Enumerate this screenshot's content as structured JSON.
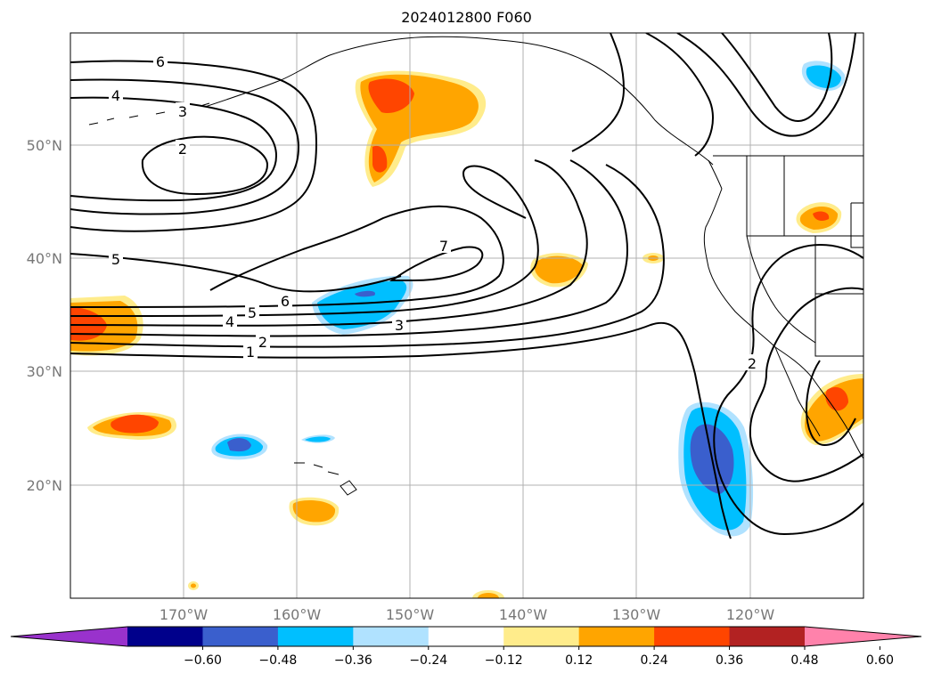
{
  "title": "2024012800 F060",
  "map": {
    "lat_ticks": [
      "50°N",
      "40°N",
      "30°N",
      "20°N"
    ],
    "lon_ticks": [
      "170°W",
      "160°W",
      "150°W",
      "140°W",
      "130°W",
      "120°W"
    ],
    "contour_labels": [
      "6",
      "4",
      "3",
      "2",
      "5",
      "7",
      "6",
      "5",
      "4",
      "2",
      "1",
      "3",
      "2"
    ],
    "grid": true
  },
  "colorbar": {
    "colors": [
      "#9932cc",
      "#00008b",
      "#3a5fcd",
      "#00bfff",
      "#b0e2ff",
      "#ffffff",
      "#ffec8b",
      "#ffa500",
      "#ff4500",
      "#b22222",
      "#ff82ab"
    ],
    "tick_labels": [
      "−0.60",
      "−0.48",
      "−0.36",
      "−0.24",
      "−0.12",
      "0.12",
      "0.24",
      "0.36",
      "0.48",
      "0.60"
    ]
  }
}
